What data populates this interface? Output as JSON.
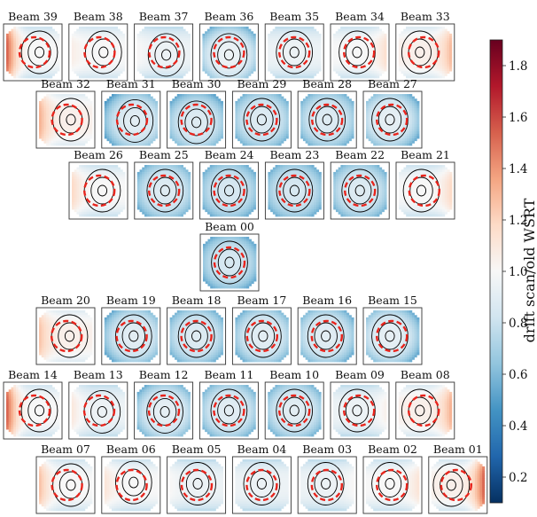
{
  "chart_data": {
    "type": "heatmap",
    "title": "",
    "colorbar": {
      "label": "drift scan/old WSRT",
      "range": [
        0.1,
        1.9
      ],
      "ticks": [
        0.2,
        0.4,
        0.6,
        0.8,
        1.0,
        1.2,
        1.4,
        1.6,
        1.8
      ],
      "tick_labels": [
        "0.2",
        "0.4",
        "0.6",
        "0.8",
        "1.0",
        "1.2",
        "1.4",
        "1.6",
        "1.8"
      ],
      "colormap": "RdBu_r",
      "position": "right"
    },
    "rows": [
      [
        {
          "label": "Beam 39",
          "center": 1.0,
          "shift": [
            0.25,
            0.0
          ],
          "edge_lo": 0.2,
          "edge_hi": 1.9
        },
        {
          "label": "Beam 38",
          "center": 1.0,
          "shift": [
            0.2,
            0.0
          ],
          "edge_lo": 0.3,
          "edge_hi": 1.1
        },
        {
          "label": "Beam 37",
          "center": 0.95,
          "shift": [
            0.1,
            0.1
          ],
          "edge_lo": 0.2,
          "edge_hi": 1.05
        },
        {
          "label": "Beam 36",
          "center": 0.95,
          "shift": [
            0.0,
            0.1
          ],
          "edge_lo": 0.2,
          "edge_hi": 1.0
        },
        {
          "label": "Beam 35",
          "center": 0.95,
          "shift": [
            0.0,
            0.0
          ],
          "edge_lo": 0.2,
          "edge_hi": 1.05
        },
        {
          "label": "Beam 34",
          "center": 1.0,
          "shift": [
            -0.1,
            0.0
          ],
          "edge_lo": 0.2,
          "edge_hi": 1.25
        },
        {
          "label": "Beam 33",
          "center": 1.05,
          "shift": [
            -0.2,
            0.0
          ],
          "edge_lo": 0.3,
          "edge_hi": 1.45
        }
      ],
      [
        {
          "label": "Beam 32",
          "center": 1.05,
          "shift": [
            0.2,
            0.0
          ],
          "edge_lo": 0.4,
          "edge_hi": 1.5
        },
        {
          "label": "Beam 31",
          "center": 0.9,
          "shift": [
            0.15,
            0.05
          ],
          "edge_lo": 0.2,
          "edge_hi": 0.95
        },
        {
          "label": "Beam 30",
          "center": 0.88,
          "shift": [
            0.0,
            0.1
          ],
          "edge_lo": 0.2,
          "edge_hi": 0.95
        },
        {
          "label": "Beam 29",
          "center": 0.88,
          "shift": [
            0.0,
            0.0
          ],
          "edge_lo": 0.2,
          "edge_hi": 0.95
        },
        {
          "label": "Beam 28",
          "center": 0.88,
          "shift": [
            0.0,
            0.0
          ],
          "edge_lo": 0.2,
          "edge_hi": 0.95
        },
        {
          "label": "Beam 27",
          "center": 0.92,
          "shift": [
            -0.1,
            0.0
          ],
          "edge_lo": 0.2,
          "edge_hi": 1.0
        }
      ],
      [
        {
          "label": "Beam 26",
          "center": 1.0,
          "shift": [
            0.15,
            0.0
          ],
          "edge_lo": 0.2,
          "edge_hi": 1.3
        },
        {
          "label": "Beam 25",
          "center": 0.88,
          "shift": [
            0.05,
            0.0
          ],
          "edge_lo": 0.2,
          "edge_hi": 0.95
        },
        {
          "label": "Beam 24",
          "center": 0.85,
          "shift": [
            0.0,
            0.0
          ],
          "edge_lo": 0.2,
          "edge_hi": 0.9
        },
        {
          "label": "Beam 23",
          "center": 0.85,
          "shift": [
            0.0,
            0.0
          ],
          "edge_lo": 0.2,
          "edge_hi": 0.9
        },
        {
          "label": "Beam 22",
          "center": 0.88,
          "shift": [
            0.0,
            0.0
          ],
          "edge_lo": 0.2,
          "edge_hi": 0.95
        },
        {
          "label": "Beam 21",
          "center": 1.0,
          "shift": [
            -0.15,
            0.0
          ],
          "edge_lo": 0.2,
          "edge_hi": 1.3
        }
      ],
      [
        {
          "label": "Beam 00",
          "center": 0.85,
          "shift": [
            0.0,
            0.0
          ],
          "edge_lo": 0.15,
          "edge_hi": 0.9
        }
      ],
      [
        {
          "label": "Beam 20",
          "center": 1.05,
          "shift": [
            0.15,
            0.0
          ],
          "edge_lo": 0.4,
          "edge_hi": 1.4
        },
        {
          "label": "Beam 19",
          "center": 0.9,
          "shift": [
            0.1,
            0.0
          ],
          "edge_lo": 0.2,
          "edge_hi": 0.95
        },
        {
          "label": "Beam 18",
          "center": 0.88,
          "shift": [
            0.0,
            0.0
          ],
          "edge_lo": 0.2,
          "edge_hi": 0.92
        },
        {
          "label": "Beam 17",
          "center": 0.9,
          "shift": [
            0.05,
            0.0
          ],
          "edge_lo": 0.2,
          "edge_hi": 0.95
        },
        {
          "label": "Beam 16",
          "center": 0.9,
          "shift": [
            -0.05,
            0.0
          ],
          "edge_lo": 0.2,
          "edge_hi": 0.95
        },
        {
          "label": "Beam 15",
          "center": 0.92,
          "shift": [
            -0.1,
            0.0
          ],
          "edge_lo": 0.2,
          "edge_hi": 1.0
        }
      ],
      [
        {
          "label": "Beam 14",
          "center": 1.0,
          "shift": [
            0.25,
            0.0
          ],
          "edge_lo": 0.3,
          "edge_hi": 1.9
        },
        {
          "label": "Beam 13",
          "center": 0.95,
          "shift": [
            0.15,
            0.05
          ],
          "edge_lo": 0.25,
          "edge_hi": 1.2
        },
        {
          "label": "Beam 12",
          "center": 0.92,
          "shift": [
            0.05,
            0.05
          ],
          "edge_lo": 0.2,
          "edge_hi": 1.0
        },
        {
          "label": "Beam 11",
          "center": 0.9,
          "shift": [
            0.0,
            0.0
          ],
          "edge_lo": 0.2,
          "edge_hi": 0.95
        },
        {
          "label": "Beam 10",
          "center": 0.9,
          "shift": [
            0.0,
            0.0
          ],
          "edge_lo": 0.2,
          "edge_hi": 0.95
        },
        {
          "label": "Beam 09",
          "center": 0.95,
          "shift": [
            -0.1,
            0.0
          ],
          "edge_lo": 0.2,
          "edge_hi": 1.1
        },
        {
          "label": "Beam 08",
          "center": 1.05,
          "shift": [
            -0.2,
            0.0
          ],
          "edge_lo": 0.3,
          "edge_hi": 1.5
        }
      ],
      [
        {
          "label": "Beam 07",
          "center": 1.0,
          "shift": [
            0.2,
            0.0
          ],
          "edge_lo": 0.3,
          "edge_hi": 1.45
        },
        {
          "label": "Beam 06",
          "center": 1.0,
          "shift": [
            0.1,
            -0.1
          ],
          "edge_lo": 0.2,
          "edge_hi": 1.2
        },
        {
          "label": "Beam 05",
          "center": 0.95,
          "shift": [
            0.05,
            -0.05
          ],
          "edge_lo": 0.2,
          "edge_hi": 1.05
        },
        {
          "label": "Beam 04",
          "center": 0.95,
          "shift": [
            0.0,
            -0.05
          ],
          "edge_lo": 0.2,
          "edge_hi": 1.05
        },
        {
          "label": "Beam 03",
          "center": 0.95,
          "shift": [
            -0.05,
            -0.05
          ],
          "edge_lo": 0.2,
          "edge_hi": 1.05
        },
        {
          "label": "Beam 02",
          "center": 1.0,
          "shift": [
            -0.1,
            -0.05
          ],
          "edge_lo": 0.2,
          "edge_hi": 1.2
        },
        {
          "label": "Beam 01",
          "center": 1.05,
          "shift": [
            -0.25,
            0.0
          ],
          "edge_lo": 0.2,
          "edge_hi": 1.85
        }
      ]
    ]
  }
}
